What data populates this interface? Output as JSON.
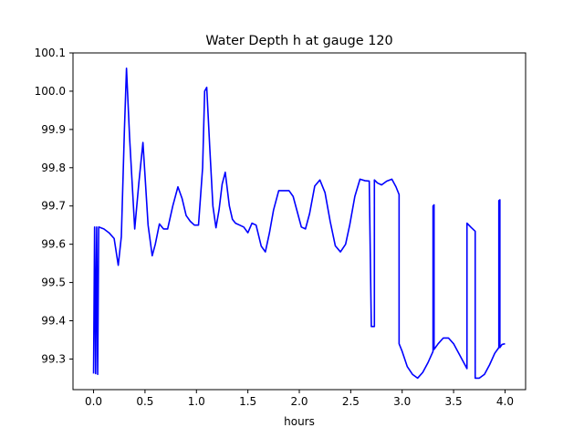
{
  "chart_data": {
    "type": "line",
    "title": "Water Depth h at gauge 120",
    "xlabel": "hours",
    "ylabel": "",
    "xlim": [
      -0.2,
      4.2
    ],
    "ylim": [
      99.22,
      100.1
    ],
    "x_ticks": [
      0.0,
      0.5,
      1.0,
      1.5,
      2.0,
      2.5,
      3.0,
      3.5,
      4.0
    ],
    "x_tick_labels": [
      "0.0",
      "0.5",
      "1.0",
      "1.5",
      "2.0",
      "2.5",
      "3.0",
      "3.5",
      "4.0"
    ],
    "y_ticks": [
      99.3,
      99.4,
      99.5,
      99.6,
      99.7,
      99.8,
      99.9,
      100.0,
      100.1
    ],
    "y_tick_labels": [
      "99.3",
      "99.4",
      "99.5",
      "99.6",
      "99.7",
      "99.8",
      "99.9",
      "100.0",
      "100.1"
    ],
    "grid": false,
    "series": [
      {
        "name": "h",
        "color": "#0000ff",
        "x": [
          0.0,
          0.01,
          0.02,
          0.03,
          0.04,
          0.05,
          0.1,
          0.15,
          0.2,
          0.24,
          0.27,
          0.3,
          0.32,
          0.35,
          0.4,
          0.44,
          0.48,
          0.5,
          0.53,
          0.57,
          0.6,
          0.64,
          0.68,
          0.72,
          0.77,
          0.82,
          0.86,
          0.9,
          0.94,
          0.98,
          1.02,
          1.06,
          1.08,
          1.1,
          1.13,
          1.16,
          1.19,
          1.22,
          1.25,
          1.28,
          1.32,
          1.35,
          1.38,
          1.42,
          1.46,
          1.5,
          1.54,
          1.58,
          1.63,
          1.67,
          1.71,
          1.75,
          1.8,
          1.85,
          1.9,
          1.94,
          1.98,
          2.02,
          2.06,
          2.1,
          2.15,
          2.2,
          2.25,
          2.3,
          2.35,
          2.4,
          2.45,
          2.49,
          2.54,
          2.59,
          2.64,
          2.68,
          2.7,
          2.7,
          2.73,
          2.73,
          2.76,
          2.8,
          2.85,
          2.9,
          2.94,
          2.97,
          2.97,
          3.0,
          3.05,
          3.1,
          3.15,
          3.2,
          3.25,
          3.3,
          3.3,
          3.31,
          3.31,
          3.35,
          3.4,
          3.45,
          3.5,
          3.55,
          3.6,
          3.63,
          3.63,
          3.67,
          3.71,
          3.71,
          3.75,
          3.8,
          3.85,
          3.9,
          3.94,
          3.94,
          3.95,
          3.95,
          3.97,
          4.0
        ],
        "y": [
          99.262,
          99.645,
          99.262,
          99.645,
          99.26,
          99.645,
          99.64,
          99.63,
          99.615,
          99.545,
          99.62,
          99.9,
          100.06,
          99.88,
          99.64,
          99.76,
          99.866,
          99.78,
          99.65,
          99.57,
          99.6,
          99.653,
          99.64,
          99.64,
          99.7,
          99.75,
          99.72,
          99.675,
          99.66,
          99.65,
          99.65,
          99.8,
          100.0,
          100.01,
          99.85,
          99.7,
          99.643,
          99.69,
          99.757,
          99.788,
          99.7,
          99.665,
          99.655,
          99.65,
          99.645,
          99.63,
          99.655,
          99.65,
          99.595,
          99.58,
          99.63,
          99.69,
          99.74,
          99.74,
          99.74,
          99.725,
          99.685,
          99.645,
          99.64,
          99.68,
          99.752,
          99.768,
          99.735,
          99.66,
          99.596,
          99.58,
          99.6,
          99.65,
          99.725,
          99.77,
          99.766,
          99.765,
          99.39,
          99.385,
          99.385,
          99.768,
          99.76,
          99.755,
          99.765,
          99.77,
          99.75,
          99.73,
          99.34,
          99.32,
          99.28,
          99.26,
          99.25,
          99.265,
          99.29,
          99.32,
          99.7,
          99.703,
          99.325,
          99.34,
          99.355,
          99.355,
          99.34,
          99.315,
          99.29,
          99.275,
          99.655,
          99.644,
          99.634,
          99.25,
          99.25,
          99.26,
          99.285,
          99.315,
          99.33,
          99.714,
          99.716,
          99.33,
          99.338,
          99.34
        ]
      }
    ]
  }
}
